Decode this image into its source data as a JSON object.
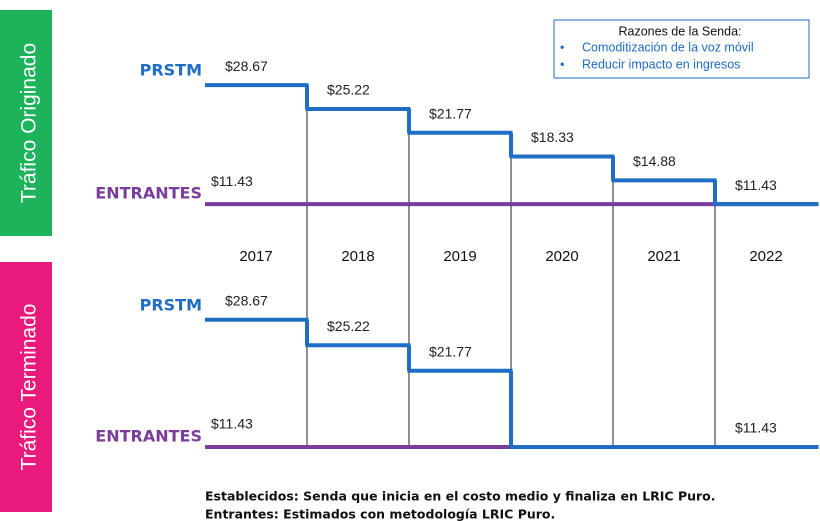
{
  "chart_data": [
    {
      "type": "step",
      "ylabel": "Tráfico Originado",
      "categories": [
        "2017",
        "2018",
        "2019",
        "2020",
        "2021",
        "2022"
      ],
      "ylim": [
        10,
        30
      ],
      "annotation": {
        "title": "Razones de la Senda:",
        "items": [
          "Comoditización de la voz móvil",
          "Reducir impacto en ingresos"
        ]
      },
      "series": [
        {
          "name": "PRSTM",
          "color": "#1f6dc4",
          "values": [
            28.67,
            25.22,
            21.77,
            18.33,
            14.88,
            11.43
          ],
          "value_labels": [
            "$28.67",
            "$25.22",
            "$21.77",
            "$18.33",
            "$14.88",
            "$11.43"
          ]
        },
        {
          "name": "ENTRANTES",
          "color": "#7a3d9c",
          "values": [
            11.43,
            11.43,
            11.43,
            11.43,
            11.43,
            11.43
          ],
          "value_labels": [
            "$11.43",
            null,
            null,
            null,
            null,
            null
          ]
        }
      ]
    },
    {
      "type": "step",
      "ylabel": "Tráfico Terminado",
      "ylim": [
        10,
        30
      ],
      "series": [
        {
          "name": "PRSTM",
          "color": "#1f6dc4",
          "values": [
            28.67,
            25.22,
            21.77,
            11.43,
            11.43,
            11.43
          ],
          "value_labels": [
            "$28.67",
            "$25.22",
            "$21.77",
            null,
            null,
            "$11.43"
          ]
        },
        {
          "name": "ENTRANTES",
          "color": "#7a3d9c",
          "values": [
            11.43,
            11.43,
            11.43,
            null,
            null,
            null
          ],
          "value_labels": [
            "$11.43",
            null,
            null,
            null,
            null,
            null
          ]
        }
      ]
    }
  ],
  "footer": [
    "Establecidos: Senda que inicia en el costo medio y finaliza en LRIC Puro.",
    "Entrantes: Estimados con metodología LRIC Puro."
  ]
}
